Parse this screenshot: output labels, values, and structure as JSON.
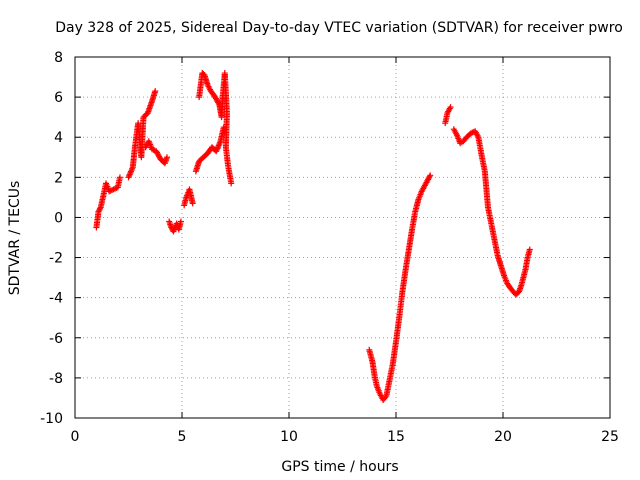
{
  "chart_data": {
    "type": "scatter",
    "title": "Day 328 of 2025, Sidereal Day-to-day VTEC variation (SDTVAR) for receiver pwro",
    "xlabel": "GPS time / hours",
    "ylabel": "SDTVAR / TECUs",
    "xlim": [
      0,
      25
    ],
    "ylim": [
      -10,
      8
    ],
    "x_ticks": [
      0,
      5,
      10,
      15,
      20,
      25
    ],
    "x_tick_labels": [
      "0",
      "5",
      "10",
      "15",
      "20",
      "25"
    ],
    "y_ticks": [
      -10,
      -8,
      -6,
      -4,
      -2,
      0,
      2,
      4,
      6,
      8
    ],
    "y_tick_labels": [
      "-10",
      "-8",
      "-6",
      "-4",
      "-2",
      "0",
      "2",
      "4",
      "6",
      "8"
    ],
    "grid": true,
    "marker": "plus",
    "color": "#ff0000",
    "series": [
      {
        "name": "SDTVAR",
        "anchors": [
          [
            [
              1.0,
              -0.5
            ],
            [
              1.1,
              0.3
            ],
            [
              1.2,
              0.5
            ],
            [
              1.35,
              1.2
            ],
            [
              1.45,
              1.7
            ],
            [
              1.6,
              1.3
            ],
            [
              1.8,
              1.4
            ],
            [
              2.0,
              1.5
            ],
            [
              2.1,
              2.0
            ]
          ],
          [
            [
              2.5,
              2.0
            ],
            [
              2.7,
              2.5
            ],
            [
              2.8,
              3.5
            ],
            [
              2.95,
              4.7
            ],
            [
              3.1,
              3.0
            ],
            [
              3.2,
              5.0
            ],
            [
              3.4,
              5.2
            ],
            [
              3.6,
              5.8
            ],
            [
              3.75,
              6.3
            ]
          ],
          [
            [
              3.3,
              3.5
            ],
            [
              3.45,
              3.8
            ],
            [
              3.6,
              3.4
            ],
            [
              3.8,
              3.3
            ],
            [
              4.0,
              2.9
            ],
            [
              4.2,
              2.7
            ],
            [
              4.3,
              3.0
            ]
          ],
          [
            [
              4.4,
              -0.2
            ],
            [
              4.5,
              -0.5
            ],
            [
              4.6,
              -0.7
            ],
            [
              4.75,
              -0.3
            ],
            [
              4.85,
              -0.6
            ],
            [
              4.95,
              -0.2
            ]
          ],
          [
            [
              5.1,
              0.6
            ],
            [
              5.2,
              1.0
            ],
            [
              5.35,
              1.4
            ],
            [
              5.5,
              0.7
            ]
          ],
          [
            [
              5.65,
              2.3
            ],
            [
              5.8,
              2.8
            ],
            [
              6.0,
              3.0
            ],
            [
              6.2,
              3.2
            ],
            [
              6.4,
              3.5
            ],
            [
              6.6,
              3.3
            ],
            [
              6.8,
              3.8
            ],
            [
              6.95,
              4.5
            ]
          ],
          [
            [
              5.8,
              6.0
            ],
            [
              5.95,
              7.2
            ],
            [
              6.05,
              7.1
            ],
            [
              6.2,
              6.6
            ],
            [
              6.35,
              6.3
            ],
            [
              6.55,
              6.0
            ],
            [
              6.75,
              5.6
            ],
            [
              6.85,
              5.0
            ],
            [
              6.9,
              6.0
            ],
            [
              7.0,
              7.2
            ],
            [
              7.1,
              5.2
            ],
            [
              7.05,
              3.5
            ],
            [
              7.15,
              2.6
            ],
            [
              7.3,
              1.7
            ]
          ],
          [
            [
              13.75,
              -6.6
            ],
            [
              13.9,
              -7.2
            ],
            [
              14.0,
              -7.9
            ],
            [
              14.1,
              -8.4
            ],
            [
              14.25,
              -8.8
            ],
            [
              14.4,
              -9.1
            ],
            [
              14.55,
              -8.9
            ],
            [
              14.7,
              -8.1
            ],
            [
              14.85,
              -7.3
            ],
            [
              15.0,
              -6.2
            ],
            [
              15.15,
              -5.0
            ],
            [
              15.3,
              -3.7
            ],
            [
              15.45,
              -2.6
            ],
            [
              15.6,
              -1.6
            ],
            [
              15.75,
              -0.6
            ],
            [
              15.9,
              0.3
            ],
            [
              16.05,
              0.9
            ],
            [
              16.2,
              1.3
            ],
            [
              16.35,
              1.6
            ],
            [
              16.5,
              1.9
            ],
            [
              16.6,
              2.1
            ]
          ],
          [
            [
              17.3,
              4.7
            ],
            [
              17.4,
              5.2
            ],
            [
              17.55,
              5.5
            ]
          ],
          [
            [
              17.7,
              4.4
            ],
            [
              17.85,
              4.1
            ],
            [
              18.0,
              3.7
            ],
            [
              18.15,
              3.8
            ],
            [
              18.3,
              4.0
            ],
            [
              18.5,
              4.2
            ],
            [
              18.7,
              4.3
            ],
            [
              18.85,
              4.0
            ],
            [
              19.0,
              3.1
            ],
            [
              19.15,
              2.3
            ],
            [
              19.3,
              0.5
            ],
            [
              19.45,
              -0.3
            ],
            [
              19.6,
              -1.1
            ],
            [
              19.75,
              -1.9
            ],
            [
              19.9,
              -2.4
            ],
            [
              20.05,
              -2.9
            ],
            [
              20.2,
              -3.3
            ],
            [
              20.4,
              -3.6
            ],
            [
              20.6,
              -3.85
            ],
            [
              20.75,
              -3.7
            ],
            [
              20.85,
              -3.4
            ],
            [
              20.95,
              -3.0
            ],
            [
              21.05,
              -2.6
            ],
            [
              21.15,
              -2.0
            ],
            [
              21.25,
              -1.6
            ]
          ]
        ]
      }
    ]
  }
}
